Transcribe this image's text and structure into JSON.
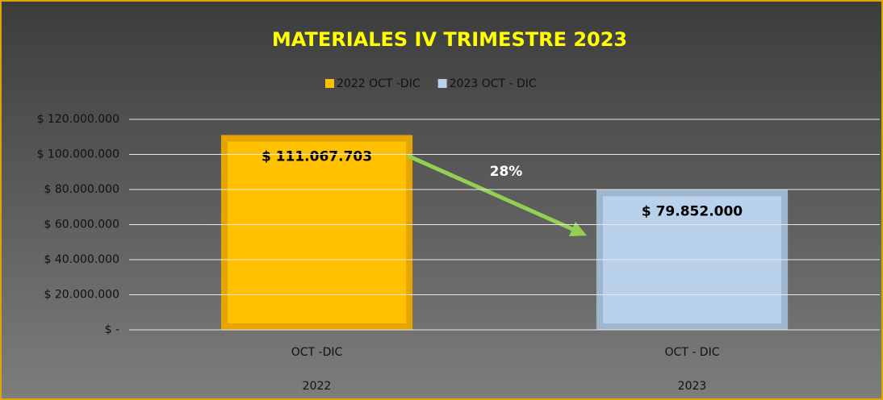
{
  "chart_data": {
    "type": "bar",
    "title": "MATERIALES IV TRIMESTRE 2023",
    "categories": [
      "OCT -DIC",
      "OCT - DIC"
    ],
    "category_groups": [
      "2022",
      "2023"
    ],
    "series": [
      {
        "name": "2022 OCT -DIC",
        "color": "#FFC000",
        "values": [
          111067703,
          null
        ],
        "value_labels": [
          "$ 111.067.703",
          null
        ]
      },
      {
        "name": "2023 OCT - DIC",
        "color": "#B9D1EA",
        "values": [
          null,
          79852000
        ],
        "value_labels": [
          null,
          "$ 79.852.000"
        ]
      }
    ],
    "annotation": "28%",
    "ylim": [
      0,
      120000000
    ],
    "yticks": [
      {
        "value": 0,
        "label": "$ -"
      },
      {
        "value": 20000000,
        "label": "$ 20.000.000"
      },
      {
        "value": 40000000,
        "label": "$ 40.000.000"
      },
      {
        "value": 60000000,
        "label": "$ 60.000.000"
      },
      {
        "value": 80000000,
        "label": "$ 80.000.000"
      },
      {
        "value": 100000000,
        "label": "$ 100.000.000"
      },
      {
        "value": 120000000,
        "label": "$ 120.000.000"
      }
    ],
    "grid": true,
    "legend": "top"
  }
}
